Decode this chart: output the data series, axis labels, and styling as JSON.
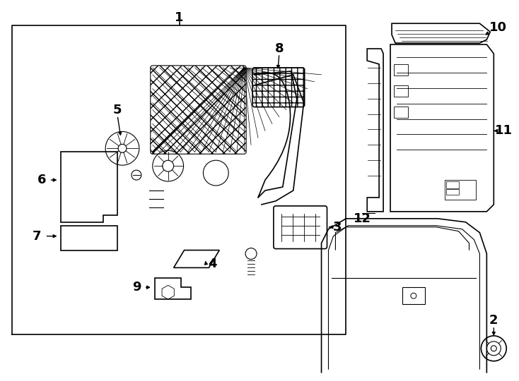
{
  "bg": "#ffffff",
  "lc": "#000000",
  "fig_w": 7.34,
  "fig_h": 5.4,
  "dpi": 100
}
